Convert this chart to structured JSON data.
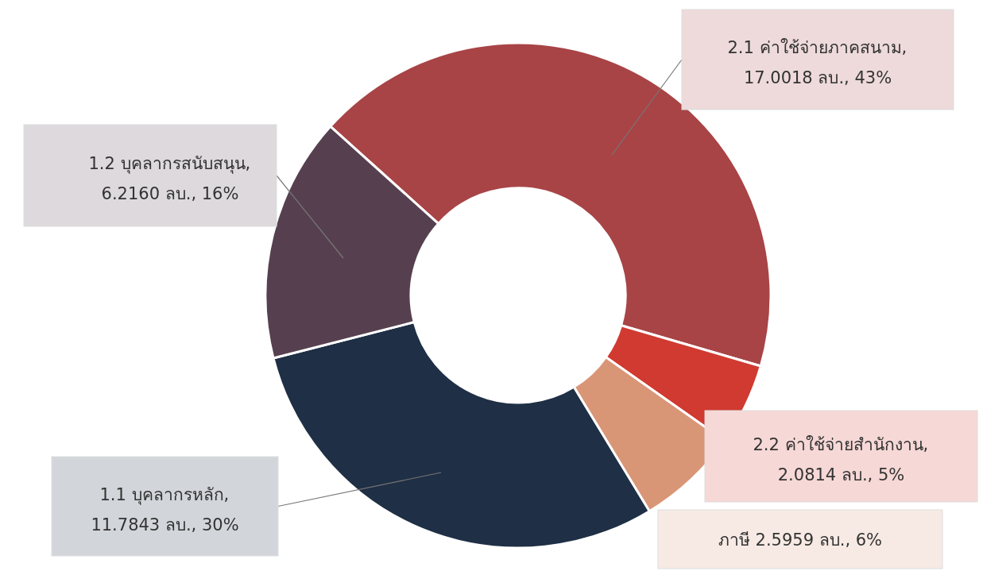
{
  "chart_data": {
    "type": "donut",
    "categories": [
      "2.1 ค่าใช้จ่ายภาคสนาม",
      "2.2 ค่าใช้จ่ายสำนักงาน",
      "ภาษี",
      "1.1 บุคลากรหลัก",
      "1.2 บุคลากรสนับสนุน"
    ],
    "values": [
      17.0018,
      2.0814,
      2.5959,
      11.7843,
      6.216
    ],
    "colors": [
      "#a84446",
      "#d03a30",
      "#d99677",
      "#1f2f45",
      "#56404f"
    ],
    "value_labels": [
      ", 17.0018  ลบ., 43%",
      ", 2.0814  ลบ., 5%",
      "2.5959  ลบ., 6%",
      ", 11.7843  ลบ., 30%",
      ", 6.2160  ลบ., 16%"
    ]
  }
}
